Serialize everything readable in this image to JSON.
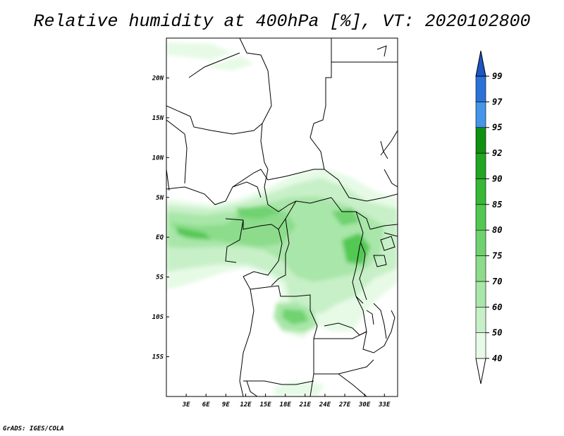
{
  "title": "Relative humidity at 400hPa [%], VT: 2020102800",
  "credit": "GrADS: IGES/COLA",
  "axes": {
    "lat_labels": [
      "20N",
      "15N",
      "10N",
      "5N",
      "EQ",
      "5S",
      "10S",
      "15S"
    ],
    "lat_values": [
      20,
      15,
      10,
      5,
      0,
      -5,
      -10,
      -15
    ],
    "lon_labels": [
      "3E",
      "6E",
      "9E",
      "12E",
      "15E",
      "18E",
      "21E",
      "24E",
      "27E",
      "30E",
      "33E"
    ],
    "lon_values": [
      3,
      6,
      9,
      12,
      15,
      18,
      21,
      24,
      27,
      30,
      33
    ],
    "lon_range": [
      0,
      35
    ],
    "lat_range": [
      -20,
      25
    ]
  },
  "colorbar": {
    "levels": [
      "40",
      "50",
      "60",
      "70",
      "75",
      "80",
      "85",
      "90",
      "92",
      "95",
      "97",
      "99"
    ],
    "colors": [
      "#ffffff",
      "#e6fae6",
      "#c8f0c8",
      "#a9e6a9",
      "#8cdc8c",
      "#6fd26f",
      "#52c852",
      "#37b837",
      "#22a522",
      "#109010",
      "#4595e8",
      "#2a72d8",
      "#1c55c4"
    ]
  },
  "colors": {
    "border": "#000000",
    "background": "#ffffff"
  }
}
